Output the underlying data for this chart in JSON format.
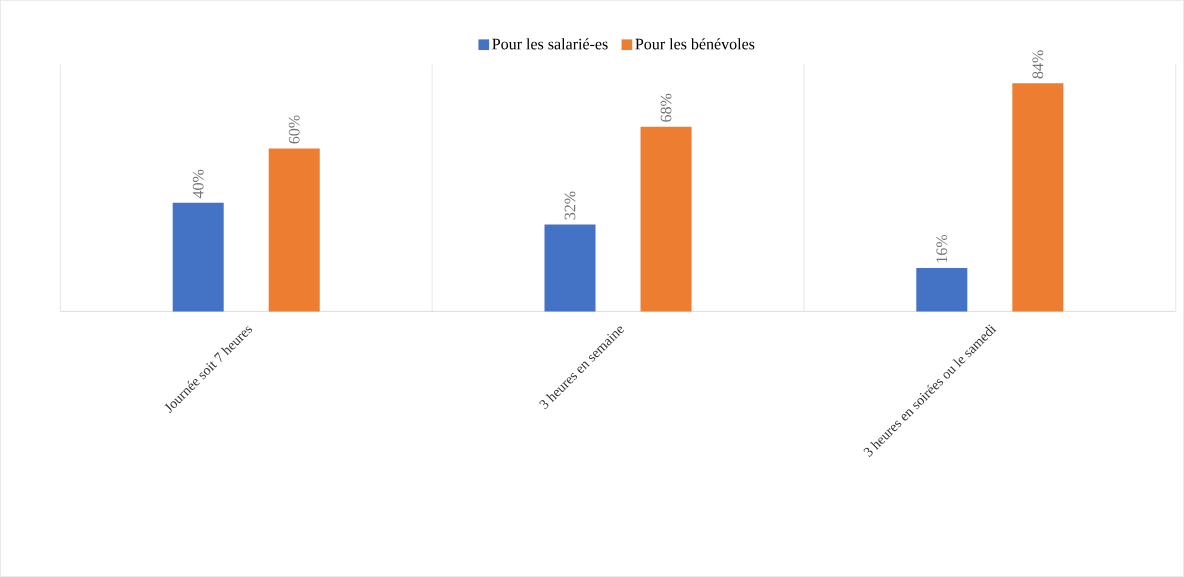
{
  "chart_data": {
    "type": "bar",
    "categories": [
      "Journée soit 7 heures",
      "3 heures en semaine",
      "3 heures en soirées ou le samedi"
    ],
    "series": [
      {
        "name": "Pour les salarié-es",
        "color": "#4472c4",
        "values": [
          40,
          32,
          16
        ],
        "value_labels": [
          "40%",
          "32%",
          "16%"
        ]
      },
      {
        "name": "Pour les bénévoles",
        "color": "#ed7d31",
        "values": [
          60,
          68,
          84
        ],
        "value_labels": [
          "60%",
          "68%",
          "84%"
        ]
      }
    ],
    "ylim": [
      0,
      91
    ],
    "grid": "x",
    "legend": "top"
  }
}
